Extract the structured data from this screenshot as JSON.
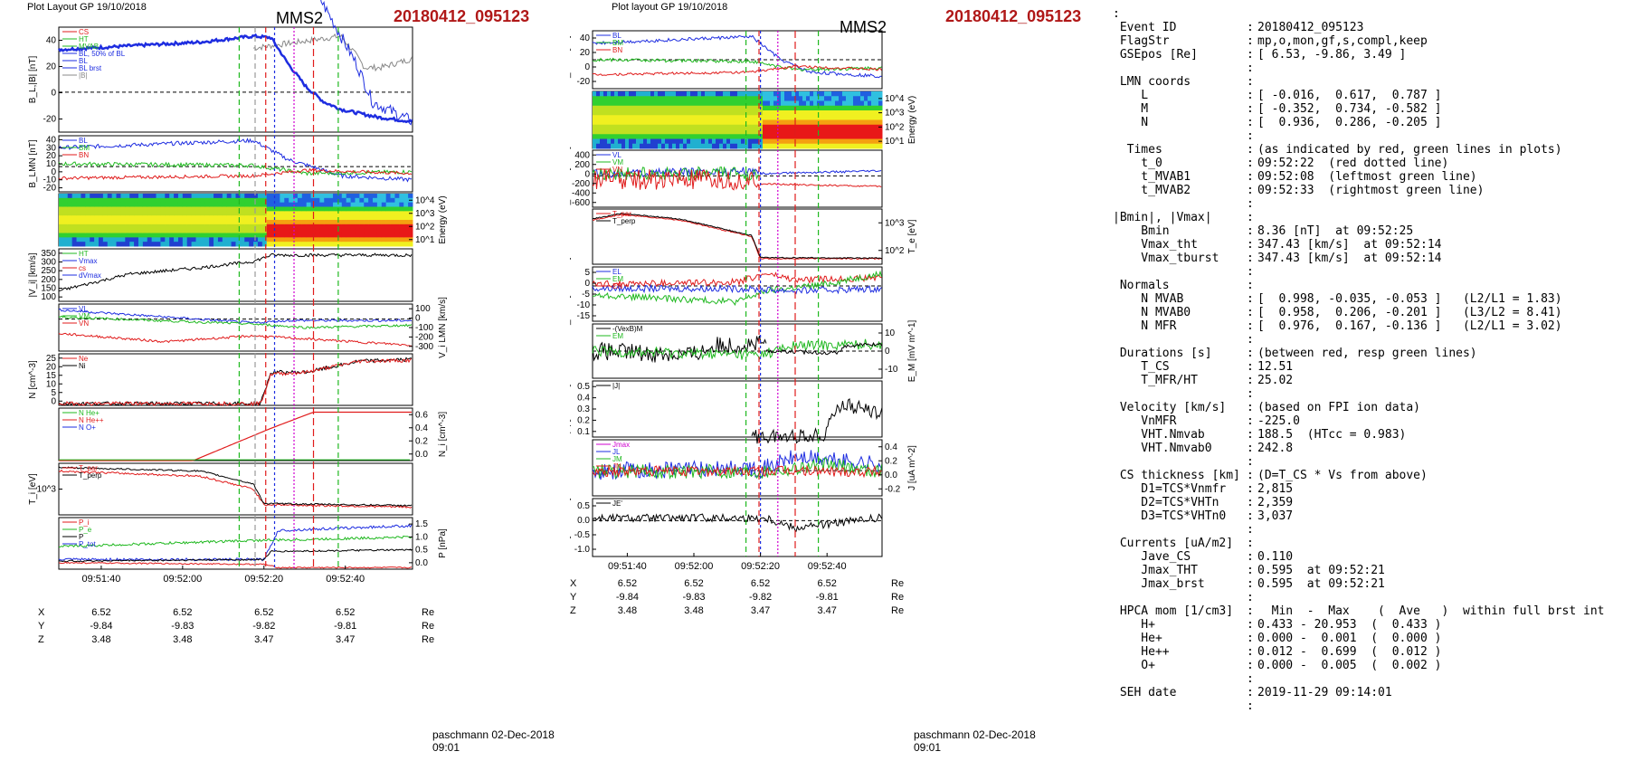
{
  "colors": {
    "red": "#e01b1b",
    "green": "#1fb81f",
    "blue": "#1e2de0",
    "black": "#000000",
    "magenta": "#d000d0",
    "gray": "#888888",
    "title_red": "#b01818"
  },
  "left_figure": {
    "header": "Plot Layout GP 19/10/2018",
    "spacecraft": "MMS2",
    "event": "20180412_095123",
    "footer": "paschmann 02-Dec-2018 09:01",
    "time_ticks": [
      "09:51:40",
      "09:52:00",
      "09:52:20",
      "09:52:40"
    ],
    "orbit_rows": [
      {
        "label": "X",
        "values": [
          "6.52",
          "6.52",
          "6.52",
          "6.52"
        ],
        "unit": "Re"
      },
      {
        "label": "Y",
        "values": [
          "-9.84",
          "-9.83",
          "-9.82",
          "-9.81"
        ],
        "unit": "Re"
      },
      {
        "label": "Z",
        "values": [
          "3.48",
          "3.48",
          "3.47",
          "3.47"
        ],
        "unit": "Re"
      }
    ],
    "panels": [
      {
        "id": "bl",
        "ylabel": "B_L,|B| [nT]",
        "yticks": [
          "40",
          "20",
          "0",
          "-20"
        ],
        "legend": [
          "CS",
          "HT",
          "MVAB",
          "BL, 50% of BL",
          "BL",
          "BL brst",
          "|B|"
        ]
      },
      {
        "id": "blmn",
        "ylabel": "B_LMN [nT]",
        "yticks": [
          "40",
          "30",
          "20",
          "10",
          "0",
          "-10",
          "-20"
        ],
        "legend": [
          "BL",
          "BM",
          "BN"
        ]
      },
      {
        "id": "spec",
        "ylabel_right": "Energy (eV)",
        "yticks_right": [
          "10^4",
          "10^3",
          "10^2",
          "10^1"
        ]
      },
      {
        "id": "vi",
        "ylabel": "|V_i| [km/s]",
        "yticks": [
          "350",
          "300",
          "250",
          "200",
          "150",
          "100"
        ],
        "legend": [
          "HT",
          "Vmax",
          "cs",
          "dVmax"
        ]
      },
      {
        "id": "vlmn",
        "ylabel_right": "V_i LMN [km/s]",
        "yticks_right": [
          "100",
          "0",
          "-100",
          "-200",
          "-300"
        ],
        "legend": [
          "VL",
          "VM",
          "VN"
        ]
      },
      {
        "id": "n",
        "ylabel": "N [cm^-3]",
        "yticks": [
          "25",
          "20",
          "15",
          "10",
          "5",
          "0"
        ],
        "legend": [
          "Ne",
          "Ni"
        ]
      },
      {
        "id": "ni",
        "ylabel_right": "N_i [cm^-3]",
        "yticks_right": [
          "0.6",
          "0.4",
          "0.2",
          "0.0"
        ],
        "legend": [
          "N He+",
          "N He++",
          "N O+"
        ]
      },
      {
        "id": "ti",
        "ylabel": "T_i [eV]",
        "yticks": [
          "10^3"
        ],
        "legend": [
          "T_par",
          "T_perp"
        ]
      },
      {
        "id": "p",
        "ylabel_right": "P [nPa]",
        "yticks_right": [
          "1.5",
          "1.0",
          "0.5",
          "0.0"
        ],
        "legend": [
          "P_i",
          "P_e",
          "P",
          "P_tot"
        ]
      }
    ]
  },
  "mid_figure": {
    "header": "Plot layout GP 19/10/2018",
    "spacecraft": "MMS2",
    "event": "20180412_095123",
    "footer": "paschmann 02-Dec-2018 09:01",
    "time_ticks": [
      "09:51:40",
      "09:52:00",
      "09:52:20",
      "09:52:40"
    ],
    "orbit_rows": [
      {
        "label": "X",
        "values": [
          "6.52",
          "6.52",
          "6.52",
          "6.52"
        ],
        "unit": "Re"
      },
      {
        "label": "Y",
        "values": [
          "-9.84",
          "-9.83",
          "-9.82",
          "-9.81"
        ],
        "unit": "Re"
      },
      {
        "label": "Z",
        "values": [
          "3.48",
          "3.48",
          "3.47",
          "3.47"
        ],
        "unit": "Re"
      }
    ],
    "panels": [
      {
        "id": "blmn",
        "ylabel": "B_LMN [nT]",
        "yticks": [
          "40",
          "20",
          "0",
          "-20"
        ],
        "legend": [
          "BL",
          "BM",
          "BN"
        ]
      },
      {
        "id": "espec",
        "ylabel_right": "Energy (eV)",
        "yticks_right": [
          "10^4",
          "10^3",
          "10^2",
          "10^1"
        ]
      },
      {
        "id": "ve",
        "ylabel": "V_e LMN [km/s]",
        "yticks": [
          "400",
          "200",
          "0",
          "-200",
          "-400",
          "-600"
        ],
        "legend": [
          "VL",
          "VM",
          "VN"
        ]
      },
      {
        "id": "te",
        "ylabel_right": "T_e [eV]",
        "yticks_right": [
          "10^3",
          "10^2"
        ],
        "legend": [
          "T_par",
          "T_perp"
        ]
      },
      {
        "id": "elmn",
        "ylabel": "E_LMN [mV m^-1]",
        "yticks": [
          "5",
          "0",
          "-5",
          "-10",
          "-15"
        ],
        "legend": [
          "EL",
          "EM",
          "EN"
        ]
      },
      {
        "id": "em",
        "ylabel_right": "E_M [mV m^-1]",
        "yticks_right": [
          "10",
          "0",
          "-10"
        ],
        "legend": [
          "-(VexB)M",
          "EM"
        ]
      },
      {
        "id": "j",
        "ylabel": "|J| [uA m^-2]",
        "yticks": [
          "0.5",
          "0.4",
          "0.3",
          "0.2",
          "0.1"
        ],
        "legend": [
          "|J|"
        ]
      },
      {
        "id": "jlmn",
        "ylabel_right": "J [uA m^-2]",
        "yticks_right": [
          "0.4",
          "0.2",
          "0.0",
          "-0.2"
        ],
        "legend": [
          "Jmax",
          "JL",
          "JM",
          "JN"
        ]
      },
      {
        "id": "je",
        "ylabel": "J*E' [nW m^-3]",
        "yticks": [
          "0.5",
          "0.0",
          "-0.5",
          "-1.0"
        ],
        "legend": [
          "JE'"
        ]
      }
    ]
  },
  "info_panel": {
    "lines": [
      {
        "k": ":",
        "v": ""
      },
      {
        "k": " Event ID",
        "v": "20180412_095123"
      },
      {
        "k": " FlagStr",
        "v": "mp,o,mon,gf,s,compl,keep"
      },
      {
        "k": " GSEpos [Re]",
        "v": "[ 6.53, -9.86, 3.49 ]"
      },
      {
        "k": "",
        "v": ""
      },
      {
        "k": " LMN coords",
        "v": ""
      },
      {
        "k": "    L",
        "v": "[ -0.016,  0.617,  0.787 ]"
      },
      {
        "k": "    M",
        "v": "[ -0.352,  0.734, -0.582 ]"
      },
      {
        "k": "    N",
        "v": "[  0.936,  0.286, -0.205 ]"
      },
      {
        "k": "",
        "v": ""
      },
      {
        "k": "  Times",
        "v": "(as indicated by red, green lines in plots)"
      },
      {
        "k": "    t_0",
        "v": "09:52:22  (red dotted line)"
      },
      {
        "k": "    t_MVAB1",
        "v": "09:52:08  (leftmost green line)"
      },
      {
        "k": "    t_MVAB2",
        "v": "09:52:33  (rightmost green line)"
      },
      {
        "k": "",
        "v": ""
      },
      {
        "k": "|Bmin|, |Vmax|",
        "v": ""
      },
      {
        "k": "    Bmin",
        "v": "8.36 [nT]  at 09:52:25"
      },
      {
        "k": "    Vmax_tht",
        "v": "347.43 [km/s]  at 09:52:14"
      },
      {
        "k": "    Vmax_tburst",
        "v": "347.43 [km/s]  at 09:52:14"
      },
      {
        "k": "",
        "v": ""
      },
      {
        "k": " Normals",
        "v": ""
      },
      {
        "k": "    N MVAB",
        "v": "[  0.998, -0.035, -0.053 ]   (L2/L1 = 1.83)"
      },
      {
        "k": "    N MVAB0",
        "v": "[  0.958,  0.206, -0.201 ]   (L3/L2 = 8.41)"
      },
      {
        "k": "    N MFR",
        "v": "[  0.976,  0.167, -0.136 ]   (L2/L1 = 3.02)"
      },
      {
        "k": "",
        "v": ""
      },
      {
        "k": " Durations [s]",
        "v": "(between red, resp green lines)"
      },
      {
        "k": "    T_CS",
        "v": "12.51"
      },
      {
        "k": "    T_MFR/HT",
        "v": "25.02"
      },
      {
        "k": "",
        "v": ""
      },
      {
        "k": " Velocity [km/s]",
        "v": "(based on FPI ion data)"
      },
      {
        "k": "    VnMFR",
        "v": "-225.0"
      },
      {
        "k": "    VHT.Nmvab",
        "v": "188.5  (HTcc = 0.983)"
      },
      {
        "k": "    VHT.Nmvab0",
        "v": "242.8"
      },
      {
        "k": "",
        "v": ""
      },
      {
        "k": " CS thickness [km]",
        "v": "(D=T_CS * Vs from above)"
      },
      {
        "k": "    D1=TCS*Vnmfr",
        "v": "2,815"
      },
      {
        "k": "    D2=TCS*VHTn",
        "v": "2,359"
      },
      {
        "k": "    D3=TCS*VHTn0",
        "v": "3,037"
      },
      {
        "k": "",
        "v": ""
      },
      {
        "k": " Currents [uA/m2]",
        "v": ""
      },
      {
        "k": "    Jave_CS",
        "v": "0.110"
      },
      {
        "k": "    Jmax_THT",
        "v": "0.595  at 09:52:21"
      },
      {
        "k": "    Jmax_brst",
        "v": "0.595  at 09:52:21"
      },
      {
        "k": "",
        "v": ""
      },
      {
        "k": " HPCA mom [1/cm3]",
        "v": "  Min  -  Max    (  Ave   )  within full brst int"
      },
      {
        "k": "    H+",
        "v": "0.433 - 20.953  (  0.433 )"
      },
      {
        "k": "    He+",
        "v": "0.000 -  0.001  (  0.000 )"
      },
      {
        "k": "    He++",
        "v": "0.012 -  0.699  (  0.012 )"
      },
      {
        "k": "    O+",
        "v": "0.000 -  0.005  (  0.002 )"
      },
      {
        "k": "",
        "v": ""
      },
      {
        "k": " SEH date",
        "v": "2019-11-29 09:14:01"
      },
      {
        "k": "",
        "v": ""
      }
    ]
  },
  "chart_data": [
    {
      "type": "line",
      "title": "MMS2 20180412_095123",
      "xlabel": "",
      "x_ticks": [
        "09:51:40",
        "09:52:00",
        "09:52:20",
        "09:52:40"
      ],
      "x_range": [
        "09:51:30",
        "09:52:55"
      ],
      "markers": {
        "t_0": "09:52:22",
        "t_MVAB1": "09:52:08",
        "t_MVAB2": "09:52:33"
      },
      "series": [
        {
          "name": "BL",
          "panel": "bl",
          "approx": [
            [
              0,
              30
            ],
            [
              0.4,
              35
            ],
            [
              0.55,
              39
            ],
            [
              0.6,
              38
            ],
            [
              0.65,
              20
            ],
            [
              0.7,
              5
            ],
            [
              0.75,
              -5
            ],
            [
              0.8,
              -10
            ],
            [
              0.9,
              -15
            ],
            [
              1,
              -18
            ]
          ]
        },
        {
          "name": "|B|",
          "panel": "bl",
          "approx": [
            [
              0,
              31
            ],
            [
              0.55,
              39
            ],
            [
              0.62,
              30
            ],
            [
              0.68,
              18
            ],
            [
              0.75,
              16
            ],
            [
              0.85,
              20
            ],
            [
              1,
              22
            ]
          ]
        },
        {
          "name": "Ni",
          "panel": "n",
          "approx": [
            [
              0,
              1
            ],
            [
              0.55,
              1
            ],
            [
              0.6,
              18
            ],
            [
              0.7,
              18
            ],
            [
              0.85,
              24
            ],
            [
              1,
              25
            ]
          ]
        },
        {
          "name": "N He++",
          "panel": "ni",
          "approx": [
            [
              0,
              0
            ],
            [
              0.38,
              0
            ],
            [
              0.6,
              0.4
            ],
            [
              0.72,
              0.6
            ],
            [
              1,
              0.6
            ]
          ]
        }
      ]
    },
    {
      "type": "line",
      "title": "MMS2 20180412_095123",
      "xlabel": "",
      "x_ticks": [
        "09:51:40",
        "09:52:00",
        "09:52:20",
        "09:52:40"
      ],
      "x_range": [
        "09:51:30",
        "09:52:55"
      ],
      "series": [
        {
          "name": "BL",
          "panel": "blmn",
          "approx": [
            [
              0,
              30
            ],
            [
              0.55,
              38
            ],
            [
              0.65,
              10
            ],
            [
              0.75,
              -5
            ],
            [
              1,
              -10
            ]
          ]
        },
        {
          "name": "|J|",
          "panel": "j",
          "approx": [
            [
              0,
              0
            ],
            [
              0.55,
              0.02
            ],
            [
              0.6,
              0.2
            ],
            [
              0.7,
              0.35
            ],
            [
              1,
              0.25
            ]
          ]
        }
      ]
    }
  ]
}
